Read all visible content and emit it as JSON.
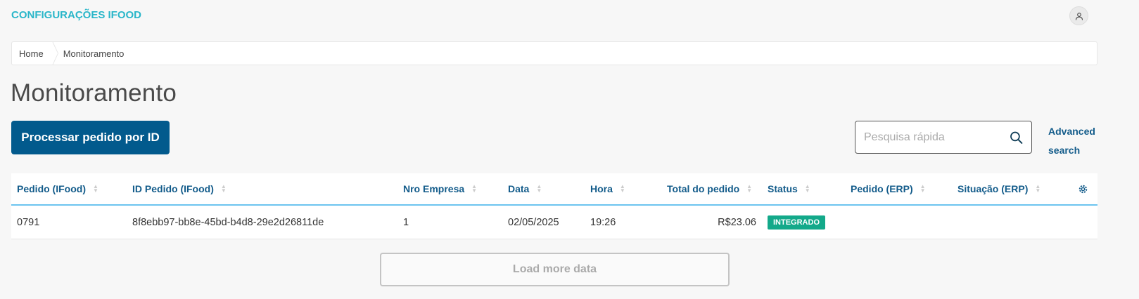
{
  "header": {
    "title": "CONFIGURAÇÕES IFOOD",
    "avatar_icon": "user-icon"
  },
  "breadcrumb": [
    "Home",
    "Monitoramento"
  ],
  "page": {
    "title": "Monitoramento"
  },
  "toolbar": {
    "process_label": "Processar pedido por ID",
    "search_placeholder": "Pesquisa rápida",
    "search_value": "",
    "advanced_search": "Advanced search"
  },
  "table": {
    "columns": [
      "Pedido (IFood)",
      "ID Pedido (IFood)",
      "Nro Empresa",
      "Data",
      "Hora",
      "Total do pedido",
      "Status",
      "Pedido (ERP)",
      "Situação (ERP)"
    ],
    "rows": [
      {
        "pedido": "0791",
        "id": "8f8ebb97-bb8e-45bd-b4d8-29e2d26811de",
        "empresa": "1",
        "data": "02/05/2025",
        "hora": "19:26",
        "total": "R$23.06",
        "status": "INTEGRADO",
        "pedido_erp": "",
        "situacao_erp": ""
      }
    ]
  },
  "load_more": "Load more data",
  "colors": {
    "brand": "#29b6c9",
    "primary": "#025a8d",
    "status_integrado": "#13a98a"
  }
}
